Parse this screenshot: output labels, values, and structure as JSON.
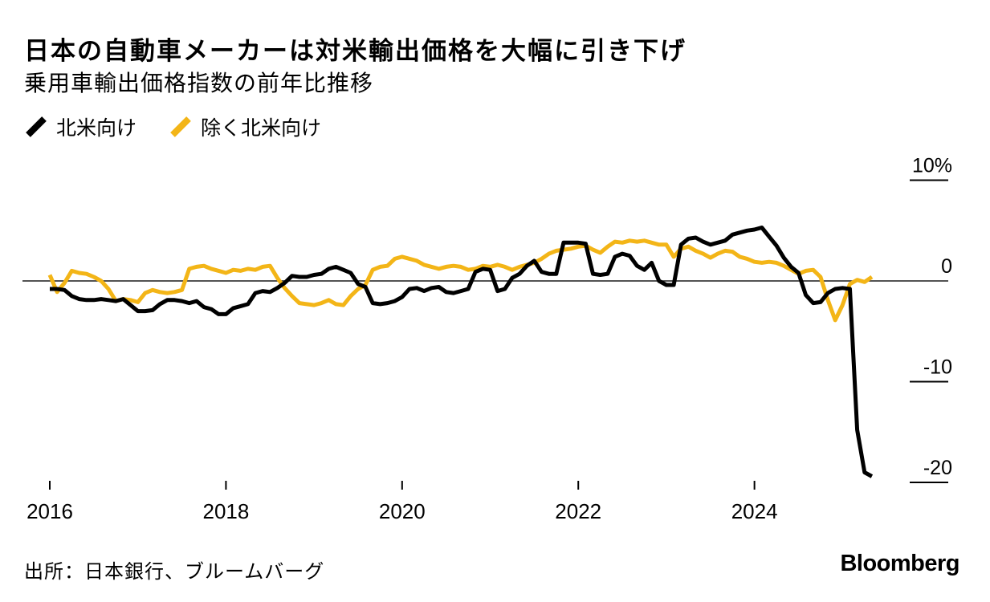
{
  "header": {
    "title": "日本の自動車メーカーは対米輸出価格を大幅に引き下げ",
    "subtitle": "乗用車輸出価格指数の前年比推移"
  },
  "legend": {
    "items": [
      {
        "label": "北米向け",
        "color": "#000000"
      },
      {
        "label": "除く北米向け",
        "color": "#f3b517"
      }
    ]
  },
  "footer": {
    "source": "出所：日本銀行、ブルームバーグ",
    "logo": "Bloomberg"
  },
  "chart_data": {
    "type": "line",
    "title": "乗用車輸出価格指数の前年比推移",
    "frequency": "monthly",
    "x_start": "2016-01",
    "x_end": "2025-05",
    "unit": "%",
    "ylim": [
      -22,
      11
    ],
    "grid": "right-side tick dashes only, horizontal zero line across plot",
    "legend_position": "top-left",
    "y_axis": {
      "side": "right",
      "ticks": [
        {
          "value": 10,
          "label": "10%"
        },
        {
          "value": 0,
          "label": "0"
        },
        {
          "value": -10,
          "label": "-10"
        },
        {
          "value": -20,
          "label": "-20"
        }
      ]
    },
    "x_axis": {
      "ticks": [
        {
          "year": 2016,
          "label": "2016"
        },
        {
          "year": 2018,
          "label": "2018"
        },
        {
          "year": 2020,
          "label": "2020"
        },
        {
          "year": 2022,
          "label": "2022"
        },
        {
          "year": 2024,
          "label": "2024"
        }
      ]
    },
    "series": [
      {
        "name": "除く北米向け",
        "color": "#f3b517",
        "values": [
          0.6,
          -1.1,
          -0.2,
          1.0,
          0.8,
          0.7,
          0.4,
          0.0,
          -0.8,
          -2.0,
          -1.8,
          -1.9,
          -2.1,
          -1.2,
          -0.9,
          -1.1,
          -1.2,
          -1.1,
          -0.9,
          1.2,
          1.4,
          1.5,
          1.2,
          1.0,
          0.8,
          1.1,
          1.0,
          1.2,
          1.1,
          1.4,
          1.5,
          0.3,
          -0.7,
          -1.5,
          -2.2,
          -2.3,
          -2.4,
          -2.2,
          -1.9,
          -2.3,
          -2.4,
          -1.5,
          -0.8,
          -0.4,
          1.1,
          1.4,
          1.5,
          2.2,
          2.4,
          2.2,
          2.0,
          1.6,
          1.4,
          1.2,
          1.4,
          1.5,
          1.4,
          1.1,
          1.2,
          1.5,
          1.4,
          1.6,
          1.4,
          1.1,
          1.4,
          1.6,
          1.8,
          2.2,
          2.7,
          3.0,
          3.1,
          3.2,
          3.4,
          3.5,
          3.1,
          2.8,
          3.4,
          3.9,
          3.8,
          4.0,
          3.9,
          4.0,
          3.8,
          3.6,
          3.6,
          2.4,
          3.2,
          3.4,
          3.0,
          2.7,
          2.3,
          2.7,
          3.0,
          2.9,
          2.4,
          2.2,
          1.9,
          1.8,
          1.9,
          1.8,
          1.5,
          1.1,
          0.7,
          1.0,
          1.1,
          0.4,
          -1.9,
          -3.9,
          -2.4,
          -0.3,
          0.1,
          -0.1,
          0.4
        ]
      },
      {
        "name": "北米向け",
        "color": "#000000",
        "values": [
          -0.8,
          -0.8,
          -0.9,
          -1.5,
          -1.8,
          -1.9,
          -1.9,
          -1.8,
          -1.9,
          -2.0,
          -1.8,
          -2.4,
          -3.0,
          -3.0,
          -2.9,
          -2.3,
          -1.9,
          -1.9,
          -2.0,
          -2.2,
          -2.0,
          -2.6,
          -2.8,
          -3.3,
          -3.3,
          -2.7,
          -2.5,
          -2.3,
          -1.2,
          -1.0,
          -1.1,
          -0.7,
          -0.2,
          0.5,
          0.4,
          0.4,
          0.6,
          0.7,
          1.2,
          1.4,
          1.1,
          0.8,
          -0.3,
          -0.6,
          -2.2,
          -2.3,
          -2.2,
          -2.0,
          -1.6,
          -0.8,
          -0.7,
          -1.0,
          -0.7,
          -0.6,
          -1.1,
          -1.2,
          -1.0,
          -0.8,
          0.9,
          1.2,
          1.1,
          -1.0,
          -0.8,
          0.3,
          0.7,
          1.5,
          2.0,
          0.9,
          0.7,
          0.7,
          3.8,
          3.8,
          3.8,
          3.7,
          0.7,
          0.6,
          0.7,
          2.4,
          2.7,
          2.5,
          1.5,
          1.1,
          1.8,
          0.0,
          -0.4,
          -0.4,
          3.6,
          4.2,
          4.3,
          3.9,
          3.6,
          3.8,
          4.0,
          4.6,
          4.8,
          5.0,
          5.1,
          5.3,
          4.4,
          3.5,
          2.3,
          1.4,
          0.8,
          -1.4,
          -2.2,
          -2.1,
          -1.2,
          -0.8,
          -0.7,
          -0.8,
          -14.8,
          -19.0,
          -19.4
        ]
      }
    ]
  }
}
